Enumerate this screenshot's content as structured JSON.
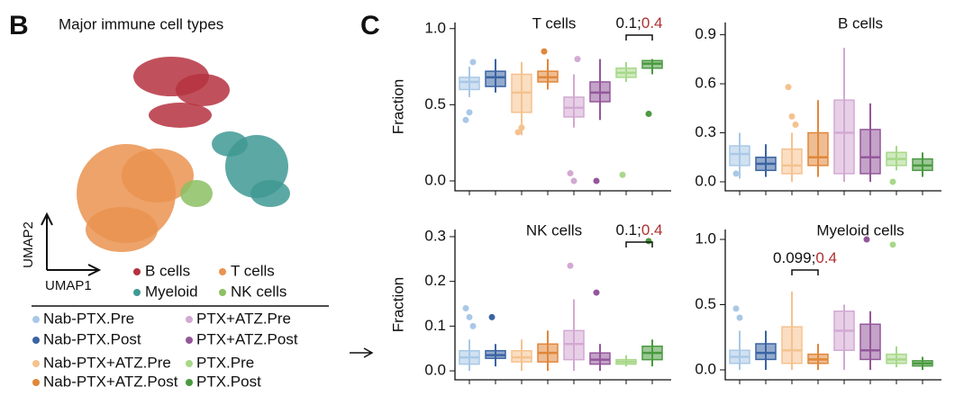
{
  "panel_labels": [
    "B",
    "C"
  ],
  "umap": {
    "title": "Major immune cell types",
    "xlabel": "UMAP1",
    "ylabel": "UMAP2",
    "clusters": [
      {
        "name": "B cells",
        "color": "#b5323f"
      },
      {
        "name": "T cells",
        "color": "#ea9350"
      },
      {
        "name": "Myeloid",
        "color": "#3f9994"
      },
      {
        "name": "NK cells",
        "color": "#8cc063"
      }
    ]
  },
  "legend": [
    {
      "name": "Nab-PTX.Pre",
      "color": "#a9c8e6"
    },
    {
      "name": "Nab-PTX.Post",
      "color": "#3b64a3"
    },
    {
      "name": "Nab-PTX+ATZ.Pre",
      "color": "#f5c28f"
    },
    {
      "name": "Nab-PTX+ATZ.Post",
      "color": "#e0873a"
    },
    {
      "name": "PTX+ATZ.Pre",
      "color": "#d3a9d3"
    },
    {
      "name": "PTX+ATZ.Post",
      "color": "#94579a"
    },
    {
      "name": "PTX.Pre",
      "color": "#a8d88a"
    },
    {
      "name": "PTX.Post",
      "color": "#4a9a40"
    }
  ],
  "chart_data": [
    {
      "type": "box",
      "title": "T cells",
      "ylabel": "Fraction",
      "ylim": [
        -0.065,
        1.04
      ],
      "yticks": [
        {
          "value": 0,
          "label": "0.0"
        },
        0.5,
        {
          "value": 1,
          "label": "1.0"
        }
      ],
      "pvalue": "0.1;",
      "qvalue": "0.4",
      "boxes": [
        {
          "min": 0.55,
          "q1": 0.6,
          "median": 0.65,
          "q3": 0.68,
          "max": 0.75,
          "points": [
            0.4,
            0.45,
            0.78
          ]
        },
        {
          "min": 0.58,
          "q1": 0.62,
          "median": 0.68,
          "q3": 0.72,
          "max": 0.8,
          "points": []
        },
        {
          "min": 0.3,
          "q1": 0.45,
          "median": 0.58,
          "q3": 0.7,
          "max": 0.78,
          "points": [
            0.32,
            0.35
          ]
        },
        {
          "min": 0.6,
          "q1": 0.65,
          "median": 0.68,
          "q3": 0.72,
          "max": 0.8,
          "points": [
            0.85
          ]
        },
        {
          "min": 0.35,
          "q1": 0.42,
          "median": 0.48,
          "q3": 0.55,
          "max": 0.7,
          "points": [
            0.05,
            0.0,
            0.8
          ]
        },
        {
          "min": 0.4,
          "q1": 0.52,
          "median": 0.58,
          "q3": 0.65,
          "max": 0.8,
          "points": [
            0.0
          ]
        },
        {
          "min": 0.65,
          "q1": 0.68,
          "median": 0.71,
          "q3": 0.74,
          "max": 0.78,
          "points": [
            0.04
          ]
        },
        {
          "min": 0.7,
          "q1": 0.74,
          "median": 0.77,
          "q3": 0.79,
          "max": 0.8,
          "points": [
            0.44
          ]
        }
      ]
    },
    {
      "type": "box",
      "title": "B cells",
      "ylim": [
        -0.055,
        0.975
      ],
      "yticks": [
        {
          "value": 0,
          "label": "0.0"
        },
        0.3,
        0.6,
        0.9
      ],
      "boxes": [
        {
          "min": 0.02,
          "q1": 0.1,
          "median": 0.17,
          "q3": 0.22,
          "max": 0.3,
          "points": [
            0.05
          ]
        },
        {
          "min": 0.03,
          "q1": 0.07,
          "median": 0.11,
          "q3": 0.15,
          "max": 0.23,
          "points": []
        },
        {
          "min": 0.0,
          "q1": 0.05,
          "median": 0.1,
          "q3": 0.2,
          "max": 0.3,
          "points": [
            0.58,
            0.4,
            0.35
          ]
        },
        {
          "min": 0.03,
          "q1": 0.1,
          "median": 0.15,
          "q3": 0.3,
          "max": 0.5,
          "points": []
        },
        {
          "min": 0.0,
          "q1": 0.05,
          "median": 0.3,
          "q3": 0.5,
          "max": 0.82,
          "points": []
        },
        {
          "min": 0.0,
          "q1": 0.05,
          "median": 0.15,
          "q3": 0.32,
          "max": 0.48,
          "points": []
        },
        {
          "min": 0.07,
          "q1": 0.1,
          "median": 0.14,
          "q3": 0.18,
          "max": 0.22,
          "points": [
            0.0
          ]
        },
        {
          "min": 0.03,
          "q1": 0.07,
          "median": 0.1,
          "q3": 0.14,
          "max": 0.18,
          "points": []
        }
      ]
    },
    {
      "type": "box",
      "title": "NK cells",
      "ylabel": "Fraction",
      "ylim": [
        -0.02,
        0.316
      ],
      "yticks": [
        {
          "value": 0,
          "label": "0.0"
        },
        0.1,
        0.2,
        0.3
      ],
      "pvalue": "0.1;",
      "qvalue": "0.4",
      "boxes": [
        {
          "min": 0.0,
          "q1": 0.015,
          "median": 0.03,
          "q3": 0.045,
          "max": 0.07,
          "points": [
            0.14,
            0.12,
            0.1
          ]
        },
        {
          "min": 0.01,
          "q1": 0.028,
          "median": 0.035,
          "q3": 0.045,
          "max": 0.06,
          "points": [
            0.12
          ]
        },
        {
          "min": 0.0,
          "q1": 0.02,
          "median": 0.03,
          "q3": 0.045,
          "max": 0.07,
          "points": []
        },
        {
          "min": 0.0,
          "q1": 0.02,
          "median": 0.04,
          "q3": 0.06,
          "max": 0.09,
          "points": []
        },
        {
          "min": 0.0,
          "q1": 0.025,
          "median": 0.06,
          "q3": 0.09,
          "max": 0.16,
          "points": [
            0.235
          ]
        },
        {
          "min": 0.0,
          "q1": 0.015,
          "median": 0.025,
          "q3": 0.04,
          "max": 0.06,
          "points": [
            0.175
          ]
        },
        {
          "min": 0.01,
          "q1": 0.015,
          "median": 0.02,
          "q3": 0.025,
          "max": 0.035,
          "points": []
        },
        {
          "min": 0.01,
          "q1": 0.025,
          "median": 0.04,
          "q3": 0.055,
          "max": 0.07,
          "points": [
            0.29
          ]
        }
      ]
    },
    {
      "type": "box",
      "title": "Myeloid cells",
      "ylim": [
        -0.076,
        1.076
      ],
      "yticks": [
        {
          "value": 0,
          "label": "0.0"
        },
        0.5,
        {
          "value": 1,
          "label": "1.0"
        }
      ],
      "pvalue": "0.099;",
      "qvalue": "0.4",
      "boxes": [
        {
          "min": 0.0,
          "q1": 0.05,
          "median": 0.1,
          "q3": 0.15,
          "max": 0.3,
          "points": [
            0.47,
            0.4
          ]
        },
        {
          "min": 0.0,
          "q1": 0.08,
          "median": 0.13,
          "q3": 0.2,
          "max": 0.3,
          "points": []
        },
        {
          "min": 0.0,
          "q1": 0.05,
          "median": 0.15,
          "q3": 0.33,
          "max": 0.6,
          "points": []
        },
        {
          "min": 0.0,
          "q1": 0.05,
          "median": 0.08,
          "q3": 0.12,
          "max": 0.2,
          "points": []
        },
        {
          "min": 0.0,
          "q1": 0.15,
          "median": 0.3,
          "q3": 0.45,
          "max": 0.5,
          "points": []
        },
        {
          "min": 0.0,
          "q1": 0.08,
          "median": 0.15,
          "q3": 0.35,
          "max": 0.45,
          "points": [
            1.0
          ]
        },
        {
          "min": 0.02,
          "q1": 0.05,
          "median": 0.08,
          "q3": 0.12,
          "max": 0.18,
          "points": [
            0.96
          ]
        },
        {
          "min": 0.0,
          "q1": 0.03,
          "median": 0.05,
          "q3": 0.07,
          "max": 0.1,
          "points": []
        }
      ]
    }
  ]
}
